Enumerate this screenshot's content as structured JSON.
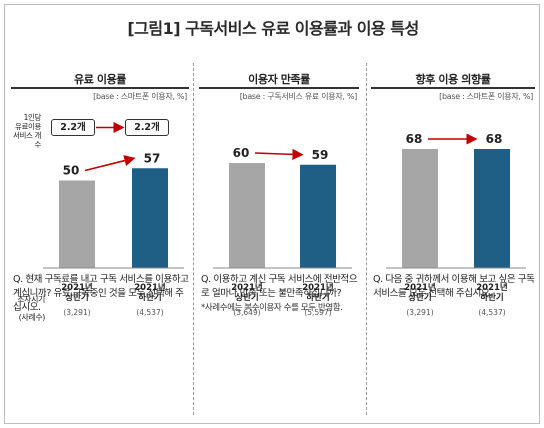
{
  "title": "[그림1] 구독서비스 유료 이용률과 이용 특성",
  "colors": {
    "bar_first": "#a6a6a6",
    "bar_second": "#1f5f85",
    "arrow": "#c00000"
  },
  "side_labels": {
    "per_person": [
      "1인당",
      "유료이용",
      "서비스 개수"
    ],
    "survey_period": "조사시기",
    "sample_size": "(사례수)"
  },
  "chart_data": [
    {
      "type": "bar",
      "title": "유료 이용률",
      "base": "[base : 스마트폰 이용자, %]",
      "categories": [
        "2021년 상반기",
        "2021년 하반기"
      ],
      "category_lines": [
        [
          "2021년",
          "상반기"
        ],
        [
          "2021년",
          "하반기"
        ]
      ],
      "sample_sizes": [
        "(3,291)",
        "(4,537)"
      ],
      "values": [
        50,
        57
      ],
      "value_labels": [
        "50",
        "57"
      ],
      "service_counts": [
        "2.2개",
        "2.2개"
      ]
    },
    {
      "type": "bar",
      "title": "이용자 만족률",
      "base": "[base : 구독서비스 유료 이용자, %]",
      "categories": [
        "2021년 상반기",
        "2021년 하반기"
      ],
      "category_lines": [
        [
          "2021년",
          "상반기"
        ],
        [
          "2021년",
          "하반기"
        ]
      ],
      "sample_sizes": [
        "(3,649)",
        "(5,597)"
      ],
      "values": [
        60,
        59
      ],
      "value_labels": [
        "60",
        "59"
      ]
    },
    {
      "type": "bar",
      "title": "향후 이용 의향률",
      "base": "[base : 스마트폰 이용자, %]",
      "categories": [
        "2021년 상반기",
        "2021년 하반기"
      ],
      "category_lines": [
        [
          "2021년",
          "상반기"
        ],
        [
          "2021년",
          "하반기"
        ]
      ],
      "sample_sizes": [
        "(3,291)",
        "(4,537)"
      ],
      "values": [
        68,
        68
      ],
      "value_labels": [
        "68",
        "68"
      ]
    }
  ],
  "questions": [
    {
      "text": "Q. 현재 구독료를 내고 구독 서비스를 이용하고 계십니까? 유료 구독중인 것을 모두 선택해 주십시오."
    },
    {
      "text": "Q. 이용하고 계신 구독 서비스에 전반적으로 얼마나 만족 또는 불만족하십니까?",
      "note": "*사례수에는 복수이용자 수를 모두 반영함."
    },
    {
      "text": "Q. 다음 중 귀하께서 이용해 보고 싶은 구독 서비스를 모두 선택해 주십시오."
    }
  ]
}
